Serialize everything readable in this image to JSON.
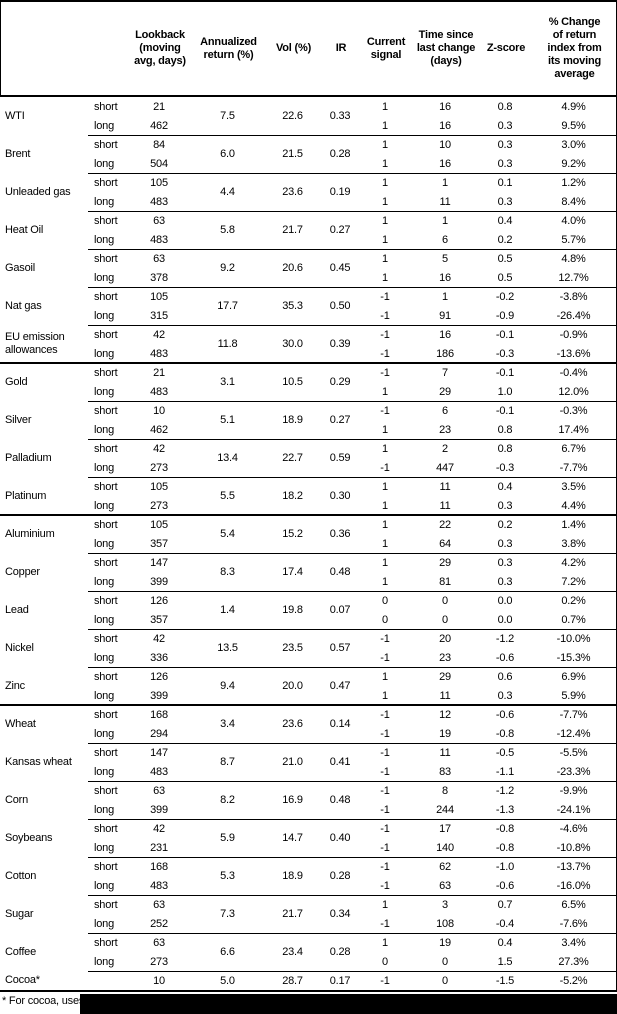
{
  "header": {
    "name_col": "",
    "leg_col": "",
    "lookback": "Lookback (moving avg, days)",
    "annualized": "Annualized return (%)",
    "vol": "Vol (%)",
    "ir": "IR",
    "signal": "Current signal",
    "time": "Time since last change (days)",
    "zscore": "Z-score",
    "pct_change": "% Change of return index from its moving average"
  },
  "rows": [
    {
      "name": "WTI",
      "label_short": "short",
      "label_long": "long",
      "lookback_short": "21",
      "lookback_long": "462",
      "annualized_return": "7.5",
      "vol": "22.6",
      "ir": "0.33",
      "signal_short": "1",
      "signal_long": "1",
      "time_short": "16",
      "time_long": "16",
      "zscore_short": "0.8",
      "zscore_long": "0.3",
      "pct_short": "4.9%",
      "pct_long": "9.5%"
    },
    {
      "name": "Brent",
      "label_short": "short",
      "label_long": "long",
      "lookback_short": "84",
      "lookback_long": "504",
      "annualized_return": "6.0",
      "vol": "21.5",
      "ir": "0.28",
      "signal_short": "1",
      "signal_long": "1",
      "time_short": "10",
      "time_long": "16",
      "zscore_short": "0.3",
      "zscore_long": "0.3",
      "pct_short": "3.0%",
      "pct_long": "9.2%"
    },
    {
      "name": "Unleaded gas",
      "label_short": "short",
      "label_long": "long",
      "lookback_short": "105",
      "lookback_long": "483",
      "annualized_return": "4.4",
      "vol": "23.6",
      "ir": "0.19",
      "signal_short": "1",
      "signal_long": "1",
      "time_short": "1",
      "time_long": "11",
      "zscore_short": "0.1",
      "zscore_long": "0.3",
      "pct_short": "1.2%",
      "pct_long": "8.4%"
    },
    {
      "name": "Heat Oil",
      "label_short": "short",
      "label_long": "long",
      "lookback_short": "63",
      "lookback_long": "483",
      "annualized_return": "5.8",
      "vol": "21.7",
      "ir": "0.27",
      "signal_short": "1",
      "signal_long": "1",
      "time_short": "1",
      "time_long": "6",
      "zscore_short": "0.4",
      "zscore_long": "0.2",
      "pct_short": "4.0%",
      "pct_long": "5.7%"
    },
    {
      "name": "Gasoil",
      "label_short": "short",
      "label_long": "long",
      "lookback_short": "63",
      "lookback_long": "378",
      "annualized_return": "9.2",
      "vol": "20.6",
      "ir": "0.45",
      "signal_short": "1",
      "signal_long": "1",
      "time_short": "5",
      "time_long": "16",
      "zscore_short": "0.5",
      "zscore_long": "0.5",
      "pct_short": "4.8%",
      "pct_long": "12.7%"
    },
    {
      "name": "Nat gas",
      "label_short": "short",
      "label_long": "long",
      "lookback_short": "105",
      "lookback_long": "315",
      "annualized_return": "17.7",
      "vol": "35.3",
      "ir": "0.50",
      "signal_short": "-1",
      "signal_long": "-1",
      "time_short": "1",
      "time_long": "91",
      "zscore_short": "-0.2",
      "zscore_long": "-0.9",
      "pct_short": "-3.8%",
      "pct_long": "-26.4%"
    },
    {
      "name": "EU emission allowances",
      "label_short": "short",
      "label_long": "long",
      "lookback_short": "42",
      "lookback_long": "483",
      "annualized_return": "11.8",
      "vol": "30.0",
      "ir": "0.39",
      "signal_short": "-1",
      "signal_long": "-1",
      "time_short": "16",
      "time_long": "186",
      "zscore_short": "-0.1",
      "zscore_long": "-0.3",
      "pct_short": "-0.9%",
      "pct_long": "-13.6%"
    },
    {
      "name": "Gold",
      "new_section": true,
      "label_short": "short",
      "label_long": "long",
      "lookback_short": "21",
      "lookback_long": "483",
      "annualized_return": "3.1",
      "vol": "10.5",
      "ir": "0.29",
      "signal_short": "-1",
      "signal_long": "1",
      "time_short": "7",
      "time_long": "29",
      "zscore_short": "-0.1",
      "zscore_long": "1.0",
      "pct_short": "-0.4%",
      "pct_long": "12.0%"
    },
    {
      "name": "Silver",
      "label_short": "short",
      "label_long": "long",
      "lookback_short": "10",
      "lookback_long": "462",
      "annualized_return": "5.1",
      "vol": "18.9",
      "ir": "0.27",
      "signal_short": "-1",
      "signal_long": "1",
      "time_short": "6",
      "time_long": "23",
      "zscore_short": "-0.1",
      "zscore_long": "0.8",
      "pct_short": "-0.3%",
      "pct_long": "17.4%"
    },
    {
      "name": "Palladium",
      "label_short": "short",
      "label_long": "long",
      "lookback_short": "42",
      "lookback_long": "273",
      "annualized_return": "13.4",
      "vol": "22.7",
      "ir": "0.59",
      "signal_short": "1",
      "signal_long": "-1",
      "time_short": "2",
      "time_long": "447",
      "zscore_short": "0.8",
      "zscore_long": "-0.3",
      "pct_short": "6.7%",
      "pct_long": "-7.7%"
    },
    {
      "name": "Platinum",
      "label_short": "short",
      "label_long": "long",
      "lookback_short": "105",
      "lookback_long": "273",
      "annualized_return": "5.5",
      "vol": "18.2",
      "ir": "0.30",
      "signal_short": "1",
      "signal_long": "1",
      "time_short": "11",
      "time_long": "11",
      "zscore_short": "0.4",
      "zscore_long": "0.3",
      "pct_short": "3.5%",
      "pct_long": "4.4%"
    },
    {
      "name": "Aluminium",
      "new_section": true,
      "label_short": "short",
      "label_long": "long",
      "lookback_short": "105",
      "lookback_long": "357",
      "annualized_return": "5.4",
      "vol": "15.2",
      "ir": "0.36",
      "signal_short": "1",
      "signal_long": "1",
      "time_short": "22",
      "time_long": "64",
      "zscore_short": "0.2",
      "zscore_long": "0.3",
      "pct_short": "1.4%",
      "pct_long": "3.8%"
    },
    {
      "name": "Copper",
      "label_short": "short",
      "label_long": "long",
      "lookback_short": "147",
      "lookback_long": "399",
      "annualized_return": "8.3",
      "vol": "17.4",
      "ir": "0.48",
      "signal_short": "1",
      "signal_long": "1",
      "time_short": "29",
      "time_long": "81",
      "zscore_short": "0.3",
      "zscore_long": "0.3",
      "pct_short": "4.2%",
      "pct_long": "7.2%"
    },
    {
      "name": "Lead",
      "label_short": "short",
      "label_long": "long",
      "lookback_short": "126",
      "lookback_long": "357",
      "annualized_return": "1.4",
      "vol": "19.8",
      "ir": "0.07",
      "signal_short": "0",
      "signal_long": "0",
      "time_short": "0",
      "time_long": "0",
      "zscore_short": "0.0",
      "zscore_long": "0.0",
      "pct_short": "0.2%",
      "pct_long": "0.7%"
    },
    {
      "name": "Nickel",
      "label_short": "short",
      "label_long": "long",
      "lookback_short": "42",
      "lookback_long": "336",
      "annualized_return": "13.5",
      "vol": "23.5",
      "ir": "0.57",
      "signal_short": "-1",
      "signal_long": "-1",
      "time_short": "20",
      "time_long": "23",
      "zscore_short": "-1.2",
      "zscore_long": "-0.6",
      "pct_short": "-10.0%",
      "pct_long": "-15.3%"
    },
    {
      "name": "Zinc",
      "label_short": "short",
      "label_long": "long",
      "lookback_short": "126",
      "lookback_long": "399",
      "annualized_return": "9.4",
      "vol": "20.0",
      "ir": "0.47",
      "signal_short": "1",
      "signal_long": "1",
      "time_short": "29",
      "time_long": "11",
      "zscore_short": "0.6",
      "zscore_long": "0.3",
      "pct_short": "6.9%",
      "pct_long": "5.9%"
    },
    {
      "name": "Wheat",
      "new_section": true,
      "label_short": "short",
      "label_long": "long",
      "lookback_short": "168",
      "lookback_long": "294",
      "annualized_return": "3.4",
      "vol": "23.6",
      "ir": "0.14",
      "signal_short": "-1",
      "signal_long": "-1",
      "time_short": "12",
      "time_long": "19",
      "zscore_short": "-0.6",
      "zscore_long": "-0.8",
      "pct_short": "-7.7%",
      "pct_long": "-12.4%"
    },
    {
      "name": "Kansas wheat",
      "label_short": "short",
      "label_long": "long",
      "lookback_short": "147",
      "lookback_long": "483",
      "annualized_return": "8.7",
      "vol": "21.0",
      "ir": "0.41",
      "signal_short": "-1",
      "signal_long": "-1",
      "time_short": "11",
      "time_long": "83",
      "zscore_short": "-0.5",
      "zscore_long": "-1.1",
      "pct_short": "-5.5%",
      "pct_long": "-23.3%"
    },
    {
      "name": "Corn",
      "label_short": "short",
      "label_long": "long",
      "lookback_short": "63",
      "lookback_long": "399",
      "annualized_return": "8.2",
      "vol": "16.9",
      "ir": "0.48",
      "signal_short": "-1",
      "signal_long": "-1",
      "time_short": "8",
      "time_long": "244",
      "zscore_short": "-1.2",
      "zscore_long": "-1.3",
      "pct_short": "-9.9%",
      "pct_long": "-24.1%"
    },
    {
      "name": "Soybeans",
      "label_short": "short",
      "label_long": "long",
      "lookback_short": "42",
      "lookback_long": "231",
      "annualized_return": "5.9",
      "vol": "14.7",
      "ir": "0.40",
      "signal_short": "-1",
      "signal_long": "-1",
      "time_short": "17",
      "time_long": "140",
      "zscore_short": "-0.8",
      "zscore_long": "-0.8",
      "pct_short": "-4.6%",
      "pct_long": "-10.8%"
    },
    {
      "name": "Cotton",
      "label_short": "short",
      "label_long": "long",
      "lookback_short": "168",
      "lookback_long": "483",
      "annualized_return": "5.3",
      "vol": "18.9",
      "ir": "0.28",
      "signal_short": "-1",
      "signal_long": "-1",
      "time_short": "62",
      "time_long": "63",
      "zscore_short": "-1.0",
      "zscore_long": "-0.6",
      "pct_short": "-13.7%",
      "pct_long": "-16.0%"
    },
    {
      "name": "Sugar",
      "label_short": "short",
      "label_long": "long",
      "lookback_short": "63",
      "lookback_long": "252",
      "annualized_return": "7.3",
      "vol": "21.7",
      "ir": "0.34",
      "signal_short": "1",
      "signal_long": "-1",
      "time_short": "3",
      "time_long": "108",
      "zscore_short": "0.7",
      "zscore_long": "-0.4",
      "pct_short": "6.5%",
      "pct_long": "-7.6%"
    },
    {
      "name": "Coffee",
      "label_short": "short",
      "label_long": "long",
      "lookback_short": "63",
      "lookback_long": "273",
      "annualized_return": "6.6",
      "vol": "23.4",
      "ir": "0.28",
      "signal_short": "1",
      "signal_long": "0",
      "time_short": "19",
      "time_long": "0",
      "zscore_short": "0.4",
      "zscore_long": "1.5",
      "pct_short": "3.4%",
      "pct_long": "27.3%"
    },
    {
      "name": "Cocoa*",
      "single": true,
      "lookback_short": "10",
      "annualized_return": "5.0",
      "vol": "28.7",
      "ir": "0.17",
      "signal_short": "-1",
      "time_short": "0",
      "zscore_short": "-1.5",
      "pct_short": "-5.2%"
    }
  ],
  "footnote": "* For cocoa, uses c",
  "colors": {
    "text": "#000000",
    "background": "#ffffff",
    "rule": "#000000",
    "redaction": "#000000"
  }
}
